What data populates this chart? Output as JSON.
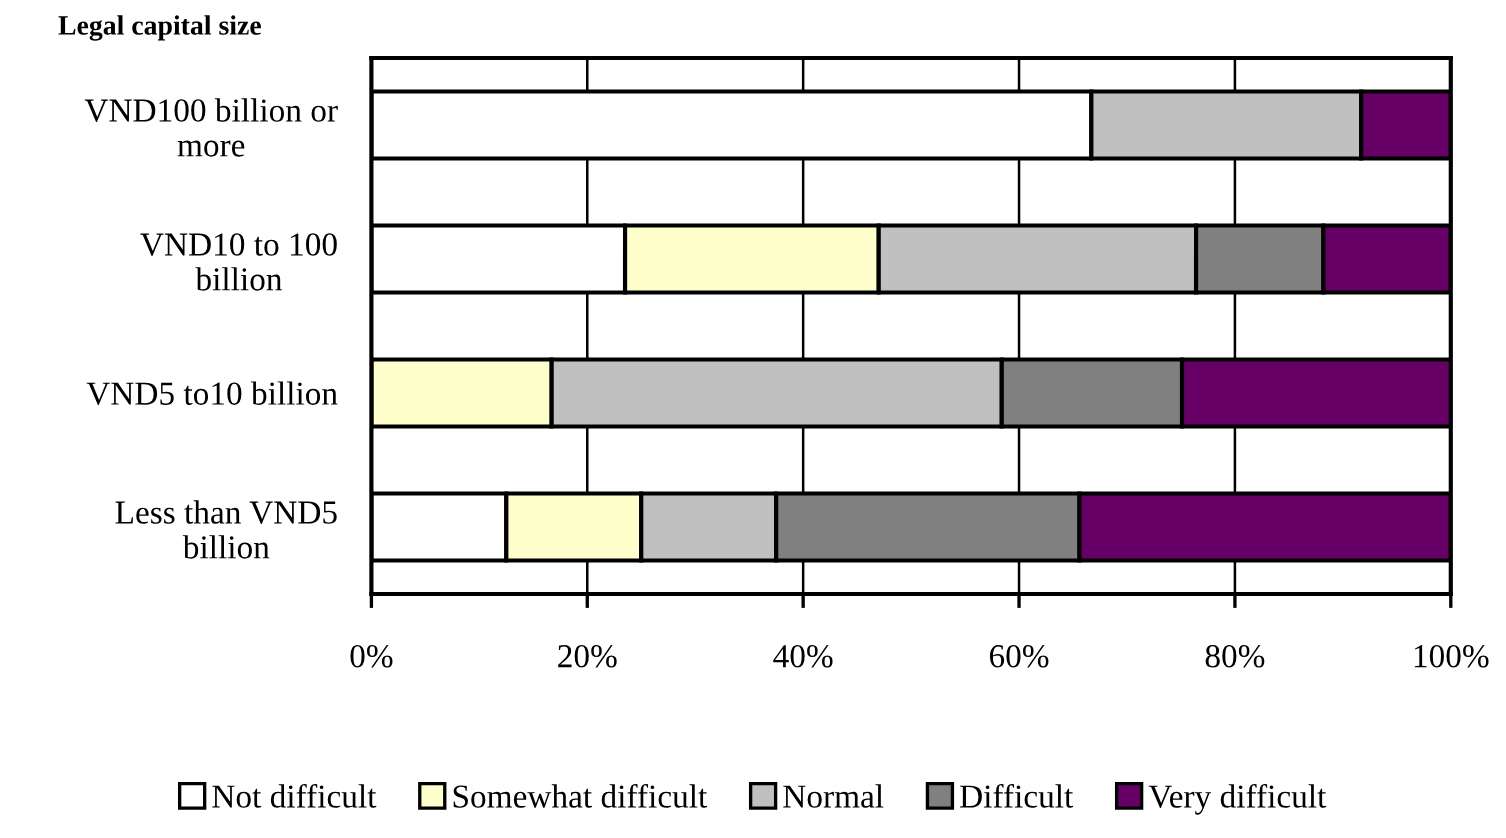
{
  "chart_data": {
    "type": "bar",
    "orientation": "horizontal",
    "stacked": true,
    "ylabel": "Legal capital size",
    "categories": [
      "VND100 billion or\nmore",
      "VND10 to 100\nbillion",
      "VND5 to10 billion",
      "Less than VND5\nbillion"
    ],
    "series": [
      {
        "name": "Not difficult",
        "color": "#ffffff",
        "values": [
          66.7,
          23.5,
          0,
          12.5
        ]
      },
      {
        "name": "Somewhat difficult",
        "color": "#ffffcc",
        "values": [
          0,
          23.5,
          16.7,
          12.5
        ]
      },
      {
        "name": "Normal",
        "color": "#c0c0c0",
        "values": [
          25.0,
          29.4,
          41.7,
          12.5
        ]
      },
      {
        "name": "Difficult",
        "color": "#808080",
        "values": [
          0,
          11.8,
          16.7,
          28.1
        ]
      },
      {
        "name": "Very difficult",
        "color": "#660066",
        "values": [
          8.3,
          11.8,
          25.0,
          34.4
        ]
      }
    ],
    "xlim": [
      0,
      100
    ],
    "xticks": [
      {
        "value": 0,
        "label": "0%"
      },
      {
        "value": 20,
        "label": "20%"
      },
      {
        "value": 40,
        "label": "40%"
      },
      {
        "value": 60,
        "label": "60%"
      },
      {
        "value": 80,
        "label": "80%"
      },
      {
        "value": 100,
        "label": "100%"
      }
    ],
    "grid": "x",
    "legend": "bottom"
  }
}
